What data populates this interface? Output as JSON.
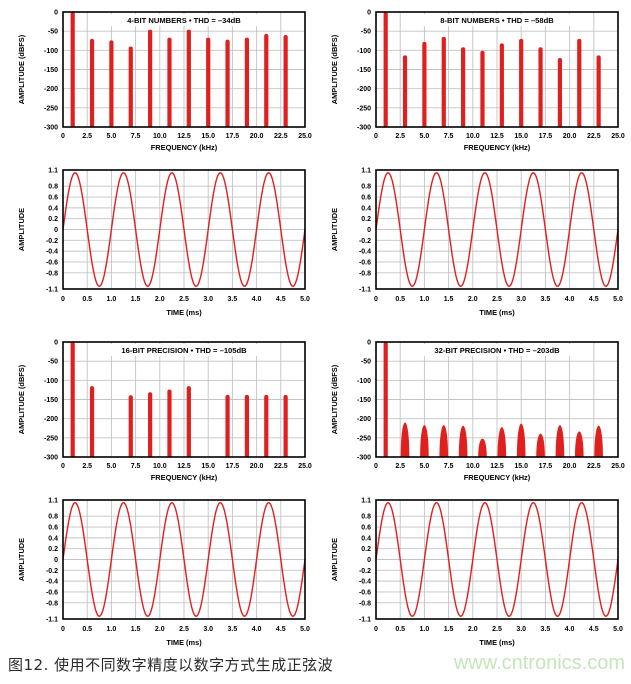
{
  "caption": {
    "text": "图12. 使用不同数字精度以数字方式生成正弦波"
  },
  "watermark": {
    "text": "www.cntronics.com",
    "color": "#c5e6ba"
  },
  "colors": {
    "trace_red": "#e01f1f",
    "grid_gray": "#c3c3c3",
    "axis_black": "#000000",
    "background": "#ffffff"
  },
  "chart_data": [
    {
      "type": "bar",
      "subtype": "fft",
      "title": "4-BIT NUMBERS • THD = –34dB",
      "xlabel": "FREQUENCY (kHz)",
      "ylabel": "AMPLITUDE (dBFS)",
      "xlim": [
        0,
        25
      ],
      "ylim": [
        -300,
        0
      ],
      "grid": true,
      "xtick_values": [
        0,
        2.5,
        5,
        7.5,
        10,
        12.5,
        15,
        17.5,
        20,
        22.5,
        25
      ],
      "xtick_labels": [
        "0",
        "2.5",
        "5.0",
        "7.5",
        "10.0",
        "12.5",
        "15.0",
        "17.5",
        "20.0",
        "22.5",
        "25.0"
      ],
      "ytick_values": [
        0,
        -50,
        -100,
        -150,
        -200,
        -250,
        -300
      ],
      "ytick_labels": [
        "0",
        "-50",
        "-100",
        "-150",
        "-200",
        "-250",
        "-300"
      ],
      "spike_style": "bar",
      "spike_columns": [
        "freq_khz",
        "amplitude_dbfs"
      ],
      "spikes": [
        [
          1,
          0
        ],
        [
          3,
          -70
        ],
        [
          5,
          -74
        ],
        [
          7,
          -90
        ],
        [
          9,
          -46
        ],
        [
          11,
          -67
        ],
        [
          13,
          -46
        ],
        [
          15,
          -67
        ],
        [
          17,
          -72
        ],
        [
          19,
          -67
        ],
        [
          21,
          -57
        ],
        [
          23,
          -60
        ]
      ]
    },
    {
      "type": "bar",
      "subtype": "fft",
      "title": "8-BIT NUMBERS • THD = –58dB",
      "xlabel": "FREQUENCY (kHz)",
      "ylabel": "AMPLITUDE (dBFS)",
      "xlim": [
        0,
        25
      ],
      "ylim": [
        -300,
        0
      ],
      "grid": true,
      "xtick_values": [
        0,
        2.5,
        5,
        7.5,
        10,
        12.5,
        15,
        17.5,
        20,
        22.5,
        25
      ],
      "xtick_labels": [
        "0",
        "2.5",
        "5.0",
        "7.5",
        "10.0",
        "12.5",
        "15.0",
        "17.5",
        "20.0",
        "22.5",
        "25.0"
      ],
      "ytick_values": [
        0,
        -50,
        -100,
        -150,
        -200,
        -250,
        -300
      ],
      "ytick_labels": [
        "0",
        "-50",
        "-100",
        "-150",
        "-200",
        "-250",
        "-300"
      ],
      "spike_style": "bar",
      "spike_columns": [
        "freq_khz",
        "amplitude_dbfs"
      ],
      "spikes": [
        [
          1,
          0
        ],
        [
          3,
          -113
        ],
        [
          5,
          -78
        ],
        [
          7,
          -65
        ],
        [
          9,
          -92
        ],
        [
          11,
          -101
        ],
        [
          13,
          -82
        ],
        [
          15,
          -70
        ],
        [
          17,
          -92
        ],
        [
          19,
          -120
        ],
        [
          21,
          -70
        ],
        [
          23,
          -113
        ]
      ]
    },
    {
      "type": "line",
      "subtype": "sine",
      "title": "",
      "xlabel": "TIME (ms)",
      "ylabel": "AMPLITUDE",
      "xlim": [
        0,
        5
      ],
      "ylim": [
        -1.1,
        1.1
      ],
      "grid": true,
      "xtick_values": [
        0,
        0.5,
        1,
        1.5,
        2,
        2.5,
        3,
        3.5,
        4,
        4.5,
        5
      ],
      "xtick_labels": [
        "0",
        "0.5",
        "1.0",
        "1.5",
        "2.0",
        "2.5",
        "3.0",
        "3.5",
        "4.0",
        "4.5",
        "5.0"
      ],
      "ytick_values": [
        1.1,
        0.8,
        0.6,
        0.4,
        0.2,
        0,
        -0.2,
        -0.4,
        -0.6,
        -0.8,
        -1.1
      ],
      "ytick_labels": [
        "1.1",
        "0.8",
        "0.6",
        "0.4",
        "0.2",
        "0",
        "-0.2",
        "-0.4",
        "-0.6",
        "-0.8",
        "-1.1"
      ],
      "sine": {
        "amplitude": 1.05,
        "frequency_khz": 1,
        "duration_ms": 5,
        "cycles": 5
      }
    },
    {
      "type": "line",
      "subtype": "sine",
      "title": "",
      "xlabel": "TIME (ms)",
      "ylabel": "AMPLITUDE",
      "xlim": [
        0,
        5
      ],
      "ylim": [
        -1.1,
        1.1
      ],
      "grid": true,
      "xtick_values": [
        0,
        0.5,
        1,
        1.5,
        2,
        2.5,
        3,
        3.5,
        4,
        4.5,
        5
      ],
      "xtick_labels": [
        "0",
        "0.5",
        "1.0",
        "1.5",
        "2.0",
        "2.5",
        "3.0",
        "3.5",
        "4.0",
        "4.5",
        "5.0"
      ],
      "ytick_values": [
        1.1,
        0.8,
        0.6,
        0.4,
        0.2,
        0,
        -0.2,
        -0.4,
        -0.6,
        -0.8,
        -1.1
      ],
      "ytick_labels": [
        "1.1",
        "0.8",
        "0.6",
        "0.4",
        "0.2",
        "0",
        "-0.2",
        "-0.4",
        "-0.6",
        "-0.8",
        "-1.1"
      ],
      "sine": {
        "amplitude": 1.05,
        "frequency_khz": 1,
        "duration_ms": 5,
        "cycles": 5
      }
    },
    {
      "type": "bar",
      "subtype": "fft",
      "title": "16-BIT PRECISION • THD = –105dB",
      "xlabel": "FREQUENCY (kHz)",
      "ylabel": "AMPLITUDE (dBFS)",
      "xlim": [
        0,
        25
      ],
      "ylim": [
        -300,
        0
      ],
      "grid": true,
      "xtick_values": [
        0,
        2.5,
        5,
        7.5,
        10,
        12.5,
        15,
        17.5,
        20,
        22.5,
        25
      ],
      "xtick_labels": [
        "0",
        "2.5",
        "5.0",
        "7.5",
        "10.0",
        "12.5",
        "15.0",
        "17.5",
        "20.0",
        "22.5",
        "25.0"
      ],
      "ytick_values": [
        0,
        -50,
        -100,
        -150,
        -200,
        -250,
        -300
      ],
      "ytick_labels": [
        "0",
        "-50",
        "-100",
        "-150",
        "-200",
        "-250",
        "-300"
      ],
      "spike_style": "bar",
      "spike_columns": [
        "freq_khz",
        "amplitude_dbfs"
      ],
      "spikes": [
        [
          1,
          0
        ],
        [
          3,
          -115
        ],
        [
          7,
          -139
        ],
        [
          9,
          -131
        ],
        [
          11,
          -124
        ],
        [
          13,
          -115
        ],
        [
          17,
          -138
        ],
        [
          19,
          -138
        ],
        [
          21,
          -138
        ],
        [
          23,
          -138
        ]
      ]
    },
    {
      "type": "bar",
      "subtype": "fft",
      "title": "32-BIT PRECISION • THD = –203dB",
      "xlabel": "FREQUENCY (kHz)",
      "ylabel": "AMPLITUDE (dBFS)",
      "xlim": [
        0,
        25
      ],
      "ylim": [
        -300,
        0
      ],
      "grid": true,
      "xtick_values": [
        0,
        2.5,
        5,
        7.5,
        10,
        12.5,
        15,
        17.5,
        20,
        22.5,
        25
      ],
      "xtick_labels": [
        "0",
        "2.5",
        "5.0",
        "7.5",
        "10.0",
        "12.5",
        "15.0",
        "17.5",
        "20.0",
        "22.5",
        "25.0"
      ],
      "ytick_values": [
        0,
        -50,
        -100,
        -150,
        -200,
        -250,
        -300
      ],
      "ytick_labels": [
        "0",
        "-50",
        "-100",
        "-150",
        "-200",
        "-250",
        "-300"
      ],
      "spike_style": "hump",
      "spike_columns": [
        "freq_khz",
        "amplitude_dbfs"
      ],
      "spikes": [
        [
          1,
          0
        ],
        [
          3,
          -210
        ],
        [
          5,
          -217
        ],
        [
          7,
          -217
        ],
        [
          9,
          -218
        ],
        [
          11,
          -252
        ],
        [
          13,
          -222
        ],
        [
          15,
          -213
        ],
        [
          17,
          -239
        ],
        [
          19,
          -217
        ],
        [
          21,
          -233
        ],
        [
          23,
          -218
        ]
      ]
    },
    {
      "type": "line",
      "subtype": "sine",
      "title": "",
      "xlabel": "TIME (ms)",
      "ylabel": "AMPLITUDE",
      "xlim": [
        0,
        5
      ],
      "ylim": [
        -1.1,
        1.1
      ],
      "grid": true,
      "xtick_values": [
        0,
        0.5,
        1,
        1.5,
        2,
        2.5,
        3,
        3.5,
        4,
        4.5,
        5
      ],
      "xtick_labels": [
        "0",
        "0.5",
        "1.0",
        "1.5",
        "2.0",
        "2.5",
        "3.0",
        "3.5",
        "4.0",
        "4.5",
        "5.0"
      ],
      "ytick_values": [
        1.1,
        0.8,
        0.6,
        0.4,
        0.2,
        0,
        -0.2,
        -0.4,
        -0.6,
        -0.8,
        -1.1
      ],
      "ytick_labels": [
        "1.1",
        "0.8",
        "0.6",
        "0.4",
        "0.2",
        "0",
        "-0.2",
        "-0.4",
        "-0.6",
        "-0.8",
        "-1.1"
      ],
      "sine": {
        "amplitude": 1.05,
        "frequency_khz": 1,
        "duration_ms": 5,
        "cycles": 5
      }
    },
    {
      "type": "line",
      "subtype": "sine",
      "title": "",
      "xlabel": "TIME (ms)",
      "ylabel": "AMPLITUDE",
      "xlim": [
        0,
        5
      ],
      "ylim": [
        -1.1,
        1.1
      ],
      "grid": true,
      "xtick_values": [
        0,
        0.5,
        1,
        1.5,
        2,
        2.5,
        3,
        3.5,
        4,
        4.5,
        5
      ],
      "xtick_labels": [
        "0",
        "0.5",
        "1.0",
        "1.5",
        "2.0",
        "2.5",
        "3.0",
        "3.5",
        "4.0",
        "4.5",
        "5.0"
      ],
      "ytick_values": [
        1.1,
        0.8,
        0.6,
        0.4,
        0.2,
        0,
        -0.2,
        -0.4,
        -0.6,
        -0.8,
        -1.1
      ],
      "ytick_labels": [
        "1.1",
        "0.8",
        "0.6",
        "0.4",
        "0.2",
        "0",
        "-0.2",
        "-0.4",
        "-0.6",
        "-0.8",
        "-1.1"
      ],
      "sine": {
        "amplitude": 1.05,
        "frequency_khz": 1,
        "duration_ms": 5,
        "cycles": 5
      }
    }
  ]
}
